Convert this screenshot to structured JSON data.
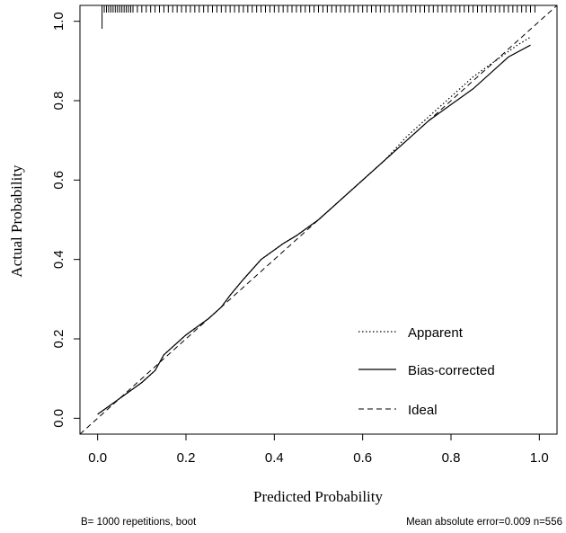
{
  "chart_data": {
    "type": "line",
    "xlabel": "Predicted Probability",
    "ylabel": "Actual Probability",
    "xlim": [
      -0.04,
      1.04
    ],
    "ylim": [
      -0.04,
      1.04
    ],
    "x_ticks": [
      "0.0",
      "0.2",
      "0.4",
      "0.6",
      "0.8",
      "1.0"
    ],
    "y_ticks": [
      "0.0",
      "0.2",
      "0.4",
      "0.6",
      "0.8",
      "1.0"
    ],
    "grid": false,
    "legend_position": "bottom-right",
    "series": [
      {
        "name": "Apparent",
        "style": "dotted",
        "x": [
          0.0,
          0.05,
          0.1,
          0.13,
          0.15,
          0.2,
          0.25,
          0.28,
          0.3,
          0.33,
          0.37,
          0.42,
          0.45,
          0.5,
          0.55,
          0.6,
          0.65,
          0.7,
          0.75,
          0.8,
          0.85,
          0.9,
          0.95,
          0.98
        ],
        "y": [
          0.01,
          0.05,
          0.09,
          0.12,
          0.16,
          0.21,
          0.25,
          0.28,
          0.31,
          0.35,
          0.4,
          0.44,
          0.46,
          0.5,
          0.55,
          0.6,
          0.65,
          0.71,
          0.76,
          0.81,
          0.86,
          0.9,
          0.94,
          0.96
        ]
      },
      {
        "name": "Bias-corrected",
        "style": "solid",
        "x": [
          0.0,
          0.05,
          0.1,
          0.13,
          0.15,
          0.2,
          0.25,
          0.28,
          0.3,
          0.33,
          0.37,
          0.42,
          0.45,
          0.5,
          0.55,
          0.6,
          0.65,
          0.7,
          0.75,
          0.8,
          0.85,
          0.9,
          0.93,
          0.98
        ],
        "y": [
          0.01,
          0.05,
          0.09,
          0.12,
          0.16,
          0.21,
          0.25,
          0.28,
          0.31,
          0.35,
          0.4,
          0.44,
          0.46,
          0.5,
          0.55,
          0.6,
          0.65,
          0.7,
          0.75,
          0.79,
          0.83,
          0.88,
          0.91,
          0.94
        ]
      },
      {
        "name": "Ideal",
        "style": "dashed",
        "x": [
          -0.04,
          1.04
        ],
        "y": [
          -0.04,
          1.04
        ]
      }
    ],
    "rug_x": [
      0.01,
      0.015,
      0.02,
      0.025,
      0.03,
      0.035,
      0.04,
      0.045,
      0.05,
      0.055,
      0.06,
      0.065,
      0.07,
      0.075,
      0.08,
      0.09,
      0.1,
      0.11,
      0.12,
      0.13,
      0.14,
      0.15,
      0.16,
      0.17,
      0.18,
      0.19,
      0.2,
      0.21,
      0.22,
      0.23,
      0.24,
      0.25,
      0.26,
      0.27,
      0.28,
      0.29,
      0.3,
      0.31,
      0.32,
      0.33,
      0.34,
      0.35,
      0.36,
      0.37,
      0.38,
      0.39,
      0.4,
      0.41,
      0.42,
      0.43,
      0.44,
      0.45,
      0.46,
      0.47,
      0.48,
      0.49,
      0.5,
      0.51,
      0.52,
      0.53,
      0.54,
      0.55,
      0.56,
      0.57,
      0.58,
      0.59,
      0.6,
      0.61,
      0.62,
      0.63,
      0.64,
      0.65,
      0.66,
      0.67,
      0.68,
      0.69,
      0.7,
      0.71,
      0.72,
      0.73,
      0.74,
      0.75,
      0.76,
      0.77,
      0.78,
      0.79,
      0.8,
      0.81,
      0.82,
      0.83,
      0.84,
      0.85,
      0.86,
      0.87,
      0.88,
      0.89,
      0.9,
      0.91,
      0.92,
      0.93,
      0.94,
      0.95,
      0.96,
      0.97,
      0.98,
      0.99
    ],
    "footnote_left": "B= 1000 repetitions, boot",
    "footnote_right": "Mean absolute error=0.009 n=556"
  }
}
